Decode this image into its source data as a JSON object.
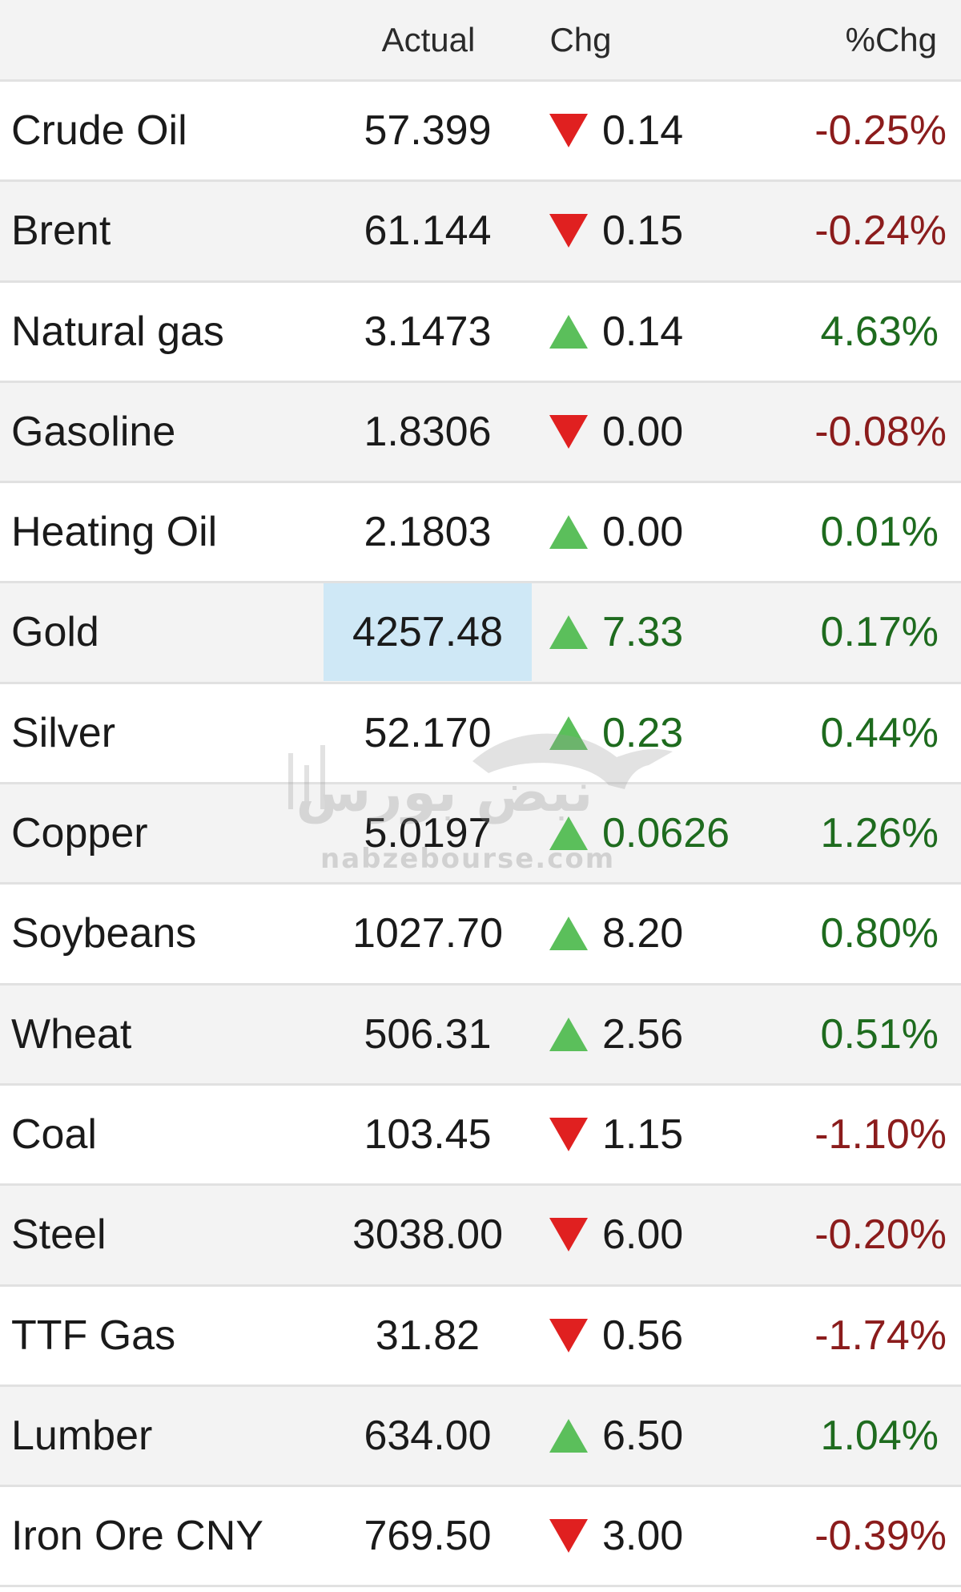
{
  "header": {
    "actual_label": "Actual",
    "chg_label": "Chg",
    "pct_label": "%Chg"
  },
  "colors": {
    "up": "#5bbf5b",
    "down": "#e02020",
    "positive_text": "#1e6b1e",
    "negative_text": "#8b1c1c",
    "highlight": "#cfe8f6"
  },
  "rows": [
    {
      "name": "Crude Oil",
      "actual": "57.399",
      "direction": "down",
      "chg": "0.14",
      "pct": "-0.25%"
    },
    {
      "name": "Brent",
      "actual": "61.144",
      "direction": "down",
      "chg": "0.15",
      "pct": "-0.24%"
    },
    {
      "name": "Natural gas",
      "actual": "3.1473",
      "direction": "up",
      "chg": "0.14",
      "pct": "4.63%"
    },
    {
      "name": "Gasoline",
      "actual": "1.8306",
      "direction": "down",
      "chg": "0.00",
      "pct": "-0.08%"
    },
    {
      "name": "Heating Oil",
      "actual": "2.1803",
      "direction": "up",
      "chg": "0.00",
      "pct": "0.01%"
    },
    {
      "name": "Gold",
      "actual": "4257.48",
      "direction": "up",
      "chg": "7.33",
      "pct": "0.17%",
      "highlight": true
    },
    {
      "name": "Silver",
      "actual": "52.170",
      "direction": "up",
      "chg": "0.23",
      "pct": "0.44%"
    },
    {
      "name": "Copper",
      "actual": "5.0197",
      "direction": "up",
      "chg": "0.0626",
      "pct": "1.26%"
    },
    {
      "name": "Soybeans",
      "actual": "1027.70",
      "direction": "up",
      "chg": "8.20",
      "pct": "0.80%"
    },
    {
      "name": "Wheat",
      "actual": "506.31",
      "direction": "up",
      "chg": "2.56",
      "pct": "0.51%"
    },
    {
      "name": "Coal",
      "actual": "103.45",
      "direction": "down",
      "chg": "1.15",
      "pct": "-1.10%"
    },
    {
      "name": "Steel",
      "actual": "3038.00",
      "direction": "down",
      "chg": "6.00",
      "pct": "-0.20%"
    },
    {
      "name": "TTF Gas",
      "actual": "31.82",
      "direction": "down",
      "chg": "0.56",
      "pct": "-1.74%"
    },
    {
      "name": "Lumber",
      "actual": "634.00",
      "direction": "up",
      "chg": "6.50",
      "pct": "1.04%"
    },
    {
      "name": "Iron Ore CNY",
      "actual": "769.50",
      "direction": "down",
      "chg": "3.00",
      "pct": "-0.39%"
    }
  ],
  "watermark": {
    "brand": "نبض بورس",
    "url": "nabzebourse.com"
  }
}
